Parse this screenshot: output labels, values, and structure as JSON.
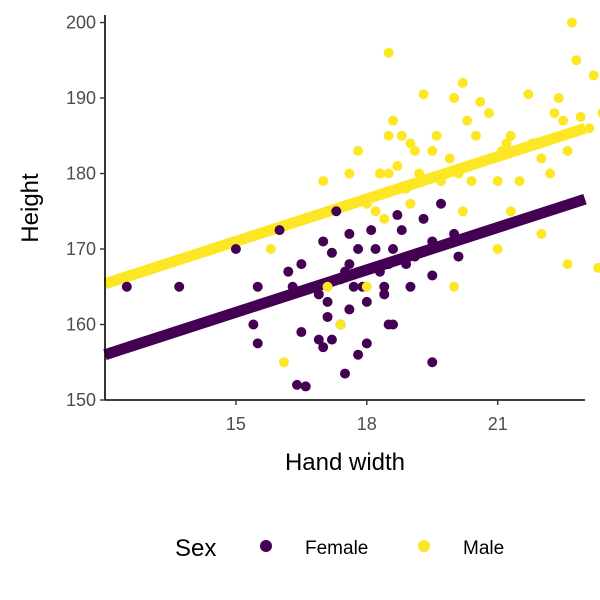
{
  "chart_data": {
    "type": "scatter",
    "xlabel": "Hand width",
    "ylabel": "Height",
    "xlim": [
      12.0,
      23.0
    ],
    "ylim": [
      150,
      201
    ],
    "x_ticks": [
      15,
      18,
      21
    ],
    "y_ticks": [
      150,
      160,
      170,
      180,
      190,
      200
    ],
    "grid": false,
    "legend": {
      "title": "Sex",
      "placement": "bottom",
      "entries": [
        "Female",
        "Male"
      ]
    },
    "series": [
      {
        "name": "Female",
        "color": "#440154",
        "fit_line": {
          "x": [
            12.0,
            23.0
          ],
          "y": [
            156.0,
            176.6
          ]
        },
        "points": [
          [
            12.5,
            165
          ],
          [
            13.7,
            165
          ],
          [
            15.0,
            170
          ],
          [
            15.5,
            165
          ],
          [
            15.4,
            160
          ],
          [
            15.5,
            157.5
          ],
          [
            16.0,
            172.5
          ],
          [
            16.2,
            167
          ],
          [
            16.5,
            168
          ],
          [
            16.3,
            165
          ],
          [
            16.4,
            152
          ],
          [
            16.6,
            151.8
          ],
          [
            16.5,
            159
          ],
          [
            16.8,
            165
          ],
          [
            16.9,
            158
          ],
          [
            17.0,
            157
          ],
          [
            17.1,
            163
          ],
          [
            17.0,
            171
          ],
          [
            17.2,
            169.5
          ],
          [
            17.4,
            166
          ],
          [
            17.5,
            167
          ],
          [
            17.6,
            168
          ],
          [
            17.7,
            165
          ],
          [
            17.6,
            162
          ],
          [
            17.4,
            160
          ],
          [
            17.5,
            153.5
          ],
          [
            17.8,
            156
          ],
          [
            18.0,
            157.5
          ],
          [
            18.1,
            172.5
          ],
          [
            18.2,
            170
          ],
          [
            18.3,
            167
          ],
          [
            18.4,
            165
          ],
          [
            18.5,
            168
          ],
          [
            18.6,
            170
          ],
          [
            18.7,
            174.5
          ],
          [
            18.5,
            160
          ],
          [
            18.6,
            160
          ],
          [
            18.8,
            172.5
          ],
          [
            19.0,
            165
          ],
          [
            19.1,
            169
          ],
          [
            19.3,
            174
          ],
          [
            19.5,
            171
          ],
          [
            19.5,
            155
          ],
          [
            19.5,
            166.5
          ],
          [
            19.7,
            176
          ],
          [
            20.0,
            172
          ],
          [
            20.1,
            169
          ],
          [
            17.3,
            175
          ],
          [
            17.8,
            170
          ],
          [
            18.0,
            163
          ],
          [
            17.2,
            158
          ],
          [
            17.6,
            172
          ],
          [
            18.2,
            167.5
          ],
          [
            18.4,
            164
          ],
          [
            18.9,
            168
          ],
          [
            17.9,
            165
          ],
          [
            17.1,
            161
          ],
          [
            16.9,
            164
          ]
        ]
      },
      {
        "name": "Male",
        "color": "#fde725",
        "fit_line": {
          "x": [
            12.0,
            23.0
          ],
          "y": [
            165.4,
            186.0
          ]
        },
        "points": [
          [
            15.8,
            170
          ],
          [
            16.1,
            155
          ],
          [
            17.0,
            179
          ],
          [
            17.1,
            165
          ],
          [
            17.4,
            160
          ],
          [
            17.6,
            180
          ],
          [
            17.8,
            183
          ],
          [
            18.0,
            176
          ],
          [
            18.2,
            175
          ],
          [
            18.3,
            180
          ],
          [
            18.4,
            174
          ],
          [
            18.5,
            180
          ],
          [
            18.7,
            181
          ],
          [
            18.8,
            185
          ],
          [
            18.9,
            178
          ],
          [
            18.5,
            185
          ],
          [
            18.6,
            187
          ],
          [
            18.5,
            196
          ],
          [
            19.0,
            176
          ],
          [
            19.1,
            183
          ],
          [
            19.2,
            180
          ],
          [
            19.3,
            190.5
          ],
          [
            19.5,
            183
          ],
          [
            19.6,
            185
          ],
          [
            19.7,
            179
          ],
          [
            19.9,
            182
          ],
          [
            20.0,
            190
          ],
          [
            20.1,
            180
          ],
          [
            20.2,
            192
          ],
          [
            20.3,
            187
          ],
          [
            20.4,
            179
          ],
          [
            20.5,
            185
          ],
          [
            20.6,
            189.5
          ],
          [
            20.8,
            188
          ],
          [
            21.0,
            179
          ],
          [
            21.1,
            183
          ],
          [
            21.2,
            184
          ],
          [
            21.3,
            185
          ],
          [
            21.5,
            179
          ],
          [
            21.7,
            190.5
          ],
          [
            21.8,
            184
          ],
          [
            22.0,
            182
          ],
          [
            22.2,
            180
          ],
          [
            22.3,
            188
          ],
          [
            22.4,
            190
          ],
          [
            22.5,
            187
          ],
          [
            22.6,
            183
          ],
          [
            22.7,
            200
          ],
          [
            22.8,
            195
          ],
          [
            22.9,
            187.5
          ],
          [
            23.1,
            186
          ],
          [
            23.2,
            193
          ],
          [
            23.4,
            188
          ],
          [
            23.5,
            180
          ],
          [
            23.3,
            167.5
          ],
          [
            20.0,
            165
          ],
          [
            21.0,
            170
          ],
          [
            21.3,
            175
          ],
          [
            22.0,
            172
          ],
          [
            22.6,
            168
          ],
          [
            18.0,
            165
          ],
          [
            19.0,
            184
          ],
          [
            20.2,
            175
          ]
        ]
      }
    ]
  }
}
